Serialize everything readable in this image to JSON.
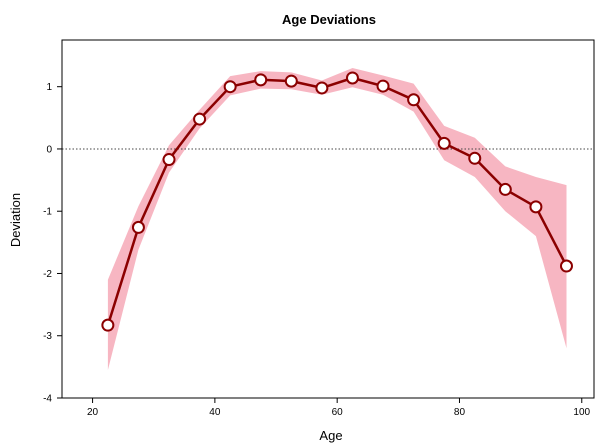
{
  "chart_data": {
    "type": "line",
    "title": "Age Deviations",
    "xlabel": "Age",
    "ylabel": "Deviation",
    "xlim": [
      15,
      102
    ],
    "ylim": [
      -4,
      1.75
    ],
    "xticks": [
      20,
      40,
      60,
      80,
      100
    ],
    "yticks": [
      -4,
      -3,
      -2,
      -1,
      0,
      1
    ],
    "reference_line": {
      "y": 0,
      "style": "dotted"
    },
    "colors": {
      "line": "#8b0000",
      "band": "#f7b6c2",
      "marker_fill": "#ffffff"
    },
    "series": [
      {
        "x": [
          22.5,
          27.5,
          32.5,
          37.5,
          42.5,
          47.5,
          52.5,
          57.5,
          62.5,
          67.5,
          72.5,
          77.5,
          82.5,
          87.5,
          92.5,
          97.5
        ],
        "y": [
          -2.83,
          -1.26,
          -0.17,
          0.48,
          1.0,
          1.11,
          1.09,
          0.98,
          1.14,
          1.01,
          0.79,
          0.09,
          -0.15,
          -0.65,
          -0.93,
          -1.88
        ],
        "lower": [
          -3.55,
          -1.62,
          -0.38,
          0.33,
          0.86,
          0.97,
          0.96,
          0.87,
          0.99,
          0.87,
          0.6,
          -0.18,
          -0.45,
          -1.0,
          -1.4,
          -3.2
        ],
        "upper": [
          -2.1,
          -0.92,
          0.06,
          0.63,
          1.17,
          1.25,
          1.23,
          1.1,
          1.3,
          1.18,
          1.05,
          0.37,
          0.18,
          -0.28,
          -0.45,
          -0.58
        ]
      }
    ]
  }
}
